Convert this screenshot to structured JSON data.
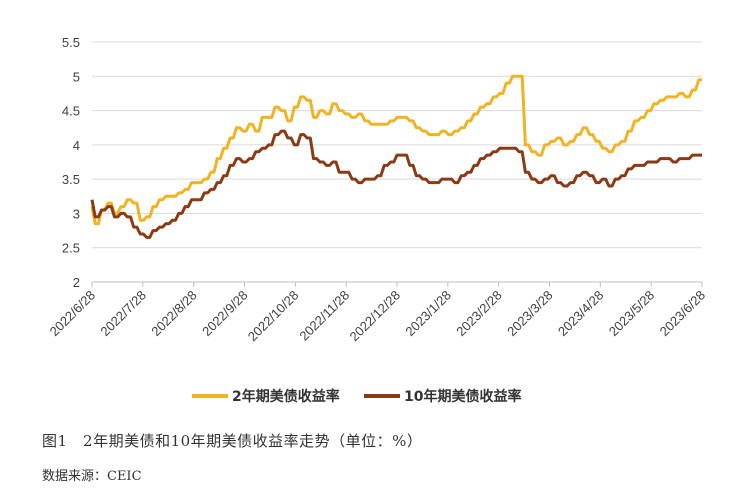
{
  "chart_data": {
    "type": "line",
    "title": "",
    "xlabel": "",
    "ylabel": "",
    "ylim": [
      2,
      5.5
    ],
    "yticks": [
      "5.5",
      "5",
      "4.5",
      "4",
      "3.5",
      "3",
      "2.5",
      "2"
    ],
    "grid": true,
    "legend_position": "bottom",
    "x_ticks": [
      "2022/6/28",
      "2022/7/28",
      "2022/8/28",
      "2022/9/28",
      "2022/10/28",
      "2022/11/28",
      "2022/12/28",
      "2023/1/28",
      "2023/2/28",
      "2023/3/28",
      "2023/4/28",
      "2023/5/28",
      "2023/6/28"
    ],
    "series": [
      {
        "name": "2年期美债收益率",
        "color": "#F0B323",
        "values": [
          3.1,
          2.85,
          3.05,
          3.15,
          3.0,
          3.1,
          3.2,
          3.15,
          2.9,
          2.95,
          3.1,
          3.2,
          3.25,
          3.25,
          3.3,
          3.35,
          3.45,
          3.45,
          3.5,
          3.6,
          3.8,
          3.95,
          4.1,
          4.25,
          4.2,
          4.3,
          4.2,
          4.4,
          4.4,
          4.55,
          4.5,
          4.35,
          4.55,
          4.7,
          4.65,
          4.4,
          4.5,
          4.45,
          4.6,
          4.5,
          4.45,
          4.4,
          4.45,
          4.35,
          4.3,
          4.3,
          4.3,
          4.35,
          4.4,
          4.4,
          4.35,
          4.25,
          4.2,
          4.15,
          4.15,
          4.2,
          4.15,
          4.2,
          4.25,
          4.35,
          4.45,
          4.55,
          4.6,
          4.7,
          4.75,
          4.9,
          5.0,
          5.0,
          4.0,
          3.9,
          3.85,
          4.0,
          4.05,
          4.1,
          4.0,
          4.05,
          4.15,
          4.25,
          4.15,
          4.05,
          3.95,
          3.9,
          4.0,
          4.05,
          4.2,
          4.35,
          4.4,
          4.5,
          4.6,
          4.65,
          4.7,
          4.7,
          4.75,
          4.7,
          4.8,
          4.95
        ]
      },
      {
        "name": "10年期美债收益率",
        "color": "#8B3A16",
        "values": [
          3.2,
          2.95,
          3.05,
          3.1,
          2.95,
          3.0,
          2.95,
          2.8,
          2.7,
          2.65,
          2.75,
          2.8,
          2.85,
          2.9,
          3.0,
          3.1,
          3.2,
          3.2,
          3.3,
          3.35,
          3.45,
          3.55,
          3.7,
          3.8,
          3.75,
          3.8,
          3.9,
          3.95,
          4.0,
          4.15,
          4.2,
          4.1,
          4.0,
          4.15,
          4.1,
          3.8,
          3.75,
          3.7,
          3.75,
          3.6,
          3.6,
          3.5,
          3.45,
          3.5,
          3.5,
          3.55,
          3.7,
          3.75,
          3.85,
          3.85,
          3.7,
          3.55,
          3.5,
          3.45,
          3.45,
          3.5,
          3.5,
          3.45,
          3.55,
          3.6,
          3.7,
          3.8,
          3.85,
          3.9,
          3.95,
          3.95,
          3.95,
          3.9,
          3.6,
          3.5,
          3.45,
          3.5,
          3.55,
          3.45,
          3.4,
          3.45,
          3.55,
          3.6,
          3.55,
          3.45,
          3.5,
          3.4,
          3.5,
          3.55,
          3.65,
          3.7,
          3.7,
          3.75,
          3.75,
          3.8,
          3.8,
          3.75,
          3.8,
          3.8,
          3.85,
          3.85
        ]
      }
    ]
  },
  "caption": "图1　2年期美债和10年期美债收益率走势（单位：%）",
  "source": "数据来源：CEIC"
}
